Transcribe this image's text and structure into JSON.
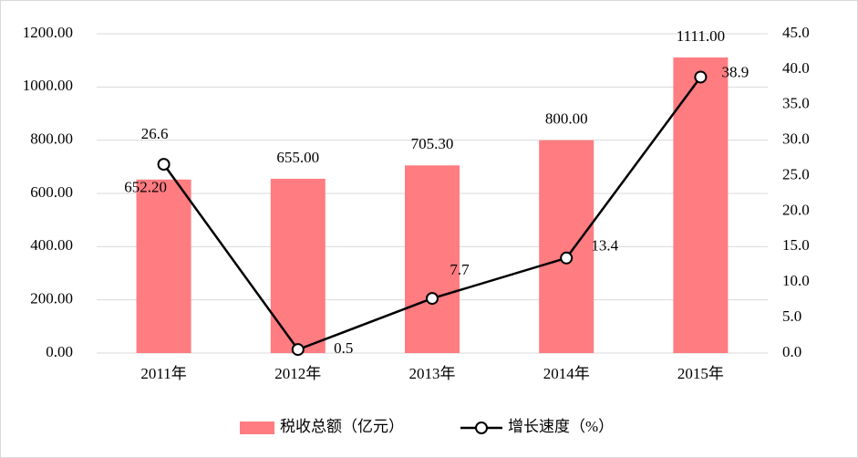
{
  "chart_data": {
    "type": "bar",
    "categories": [
      "2011年",
      "2012年",
      "2013年",
      "2014年",
      "2015年"
    ],
    "series": [
      {
        "name": "税收总额（亿元）",
        "color": "#ff7c80",
        "type": "bar",
        "values": [
          652.2,
          655,
          705.3,
          800,
          1111
        ],
        "value_labels": [
          "652.20",
          "655.00",
          "705.30",
          "800.00",
          "1111.00"
        ]
      },
      {
        "name": "增长速度（%）",
        "color": "#000000",
        "type": "line",
        "axis": "y2",
        "values": [
          26.6,
          0.5,
          7.7,
          13.4,
          38.9
        ]
      }
    ],
    "ylim": [
      0,
      1200
    ],
    "yticks": [
      {
        "value": 0,
        "label": "0.00"
      },
      {
        "value": 200,
        "label": "200.00"
      },
      {
        "value": 400,
        "label": "400.00"
      },
      {
        "value": 600,
        "label": "600.00"
      },
      {
        "value": 800,
        "label": "800.00"
      },
      {
        "value": 1000,
        "label": "1000.00"
      },
      {
        "value": 1200,
        "label": "1200.00"
      }
    ],
    "y2lim": [
      0,
      45
    ],
    "y2ticks": [
      {
        "value": 0,
        "label": "0.0"
      },
      {
        "value": 5,
        "label": "5.0"
      },
      {
        "value": 10,
        "label": "10.0"
      },
      {
        "value": 15,
        "label": "15.0"
      },
      {
        "value": 20,
        "label": "20.0"
      },
      {
        "value": 25,
        "label": "25.0"
      },
      {
        "value": 30,
        "label": "30.0"
      },
      {
        "value": 35,
        "label": "35.0"
      },
      {
        "value": 40,
        "label": "40.0"
      },
      {
        "value": 45,
        "label": "45.0"
      }
    ],
    "grid": true,
    "legend": "bottom"
  }
}
